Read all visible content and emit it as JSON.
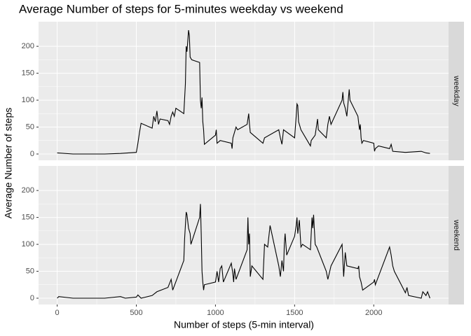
{
  "chart_data": {
    "type": "line",
    "title": "Average Number of steps for 5-minutes weekday vs weekend",
    "x_label": "Number of steps (5-min interval)",
    "y_label": "Average Number of steps",
    "xlim": [
      -117.75,
      2472.75
    ],
    "xticks": [
      0,
      500,
      1000,
      1500,
      2000
    ],
    "ylim": [
      -11.7,
      245.7
    ],
    "yticks": [
      0,
      50,
      100,
      150,
      200
    ],
    "grid": true,
    "panels": [
      {
        "name": "weekday",
        "color": "#000000",
        "x": [
          0,
          100,
          200,
          300,
          400,
          500,
          510,
          520,
          530,
          600,
          610,
          620,
          630,
          640,
          650,
          700,
          710,
          720,
          730,
          740,
          750,
          800,
          810,
          815,
          820,
          825,
          830,
          835,
          840,
          850,
          900,
          905,
          910,
          915,
          920,
          925,
          930,
          1000,
          1005,
          1010,
          1030,
          1100,
          1105,
          1110,
          1130,
          1140,
          1200,
          1210,
          1215,
          1220,
          1300,
          1310,
          1400,
          1410,
          1420,
          1430,
          1500,
          1505,
          1510,
          1515,
          1520,
          1525,
          1530,
          1540,
          1600,
          1605,
          1630,
          1645,
          1650,
          1700,
          1710,
          1720,
          1730,
          1800,
          1805,
          1810,
          1820,
          1830,
          1845,
          1850,
          1900,
          1910,
          1915,
          1920,
          1925,
          1935,
          2000,
          2005,
          2010,
          2030,
          2100,
          2110,
          2120,
          2200,
          2300,
          2330,
          2355
        ],
        "values": [
          2,
          0,
          0,
          0,
          1,
          3,
          20,
          40,
          57,
          48,
          70,
          60,
          80,
          55,
          65,
          62,
          55,
          70,
          78,
          70,
          85,
          75,
          130,
          200,
          190,
          210,
          230,
          220,
          180,
          175,
          170,
          100,
          85,
          105,
          60,
          45,
          18,
          35,
          45,
          20,
          25,
          20,
          10,
          30,
          50,
          45,
          55,
          75,
          55,
          40,
          20,
          30,
          45,
          30,
          18,
          45,
          30,
          50,
          70,
          93,
          90,
          60,
          55,
          45,
          15,
          25,
          35,
          65,
          45,
          30,
          55,
          70,
          55,
          100,
          115,
          95,
          85,
          70,
          120,
          100,
          70,
          45,
          55,
          30,
          20,
          25,
          20,
          5,
          10,
          15,
          10,
          18,
          5,
          3,
          5,
          2,
          1
        ]
      },
      {
        "name": "weekend",
        "color": "#000000",
        "x": [
          0,
          10,
          100,
          200,
          300,
          400,
          430,
          500,
          510,
          530,
          600,
          630,
          700,
          720,
          730,
          800,
          805,
          810,
          815,
          820,
          830,
          840,
          845,
          900,
          905,
          910,
          915,
          920,
          925,
          930,
          1000,
          1010,
          1020,
          1030,
          1040,
          1050,
          1100,
          1110,
          1115,
          1120,
          1130,
          1200,
          1205,
          1210,
          1215,
          1220,
          1230,
          1300,
          1310,
          1330,
          1345,
          1400,
          1410,
          1420,
          1430,
          1435,
          1440,
          1450,
          1500,
          1510,
          1515,
          1520,
          1530,
          1540,
          1550,
          1600,
          1610,
          1615,
          1620,
          1630,
          1640,
          1700,
          1710,
          1730,
          1800,
          1810,
          1820,
          1830,
          1900,
          1905,
          1910,
          1920,
          1930,
          2000,
          2005,
          2010,
          2100,
          2110,
          2120,
          2130,
          2200,
          2210,
          2220,
          2300,
          2310,
          2330,
          2340,
          2355
        ],
        "values": [
          0,
          3,
          0,
          0,
          0,
          3,
          0,
          2,
          6,
          0,
          5,
          12,
          20,
          35,
          15,
          70,
          110,
          135,
          160,
          155,
          130,
          120,
          100,
          150,
          175,
          120,
          50,
          30,
          15,
          25,
          30,
          50,
          30,
          55,
          60,
          30,
          65,
          45,
          30,
          55,
          35,
          90,
          150,
          100,
          120,
          40,
          60,
          35,
          100,
          95,
          135,
          60,
          40,
          70,
          50,
          100,
          120,
          80,
          115,
          135,
          150,
          120,
          145,
          95,
          100,
          90,
          150,
          130,
          155,
          100,
          95,
          50,
          35,
          60,
          100,
          40,
          85,
          60,
          55,
          60,
          40,
          30,
          15,
          30,
          35,
          25,
          95,
          80,
          60,
          50,
          10,
          20,
          5,
          0,
          12,
          5,
          12,
          0
        ]
      }
    ]
  }
}
